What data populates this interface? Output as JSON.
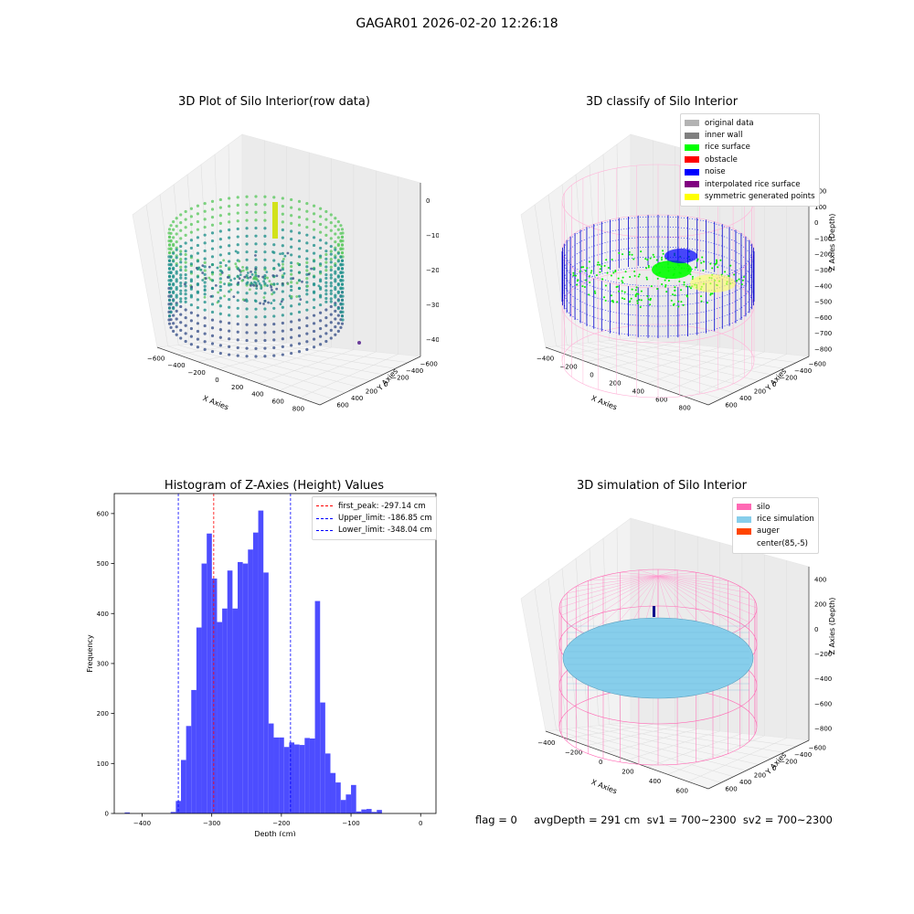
{
  "suptitle": "GAGAR01 2026-02-20 12:26:18",
  "panels": {
    "raw": {
      "title": "3D Plot of Silo Interior(row data)"
    },
    "classify": {
      "title": "3D classify of Silo Interior"
    },
    "hist": {
      "title": "Histogram of Z-Axies (Height) Values"
    },
    "sim": {
      "title": "3D simulation of Silo Interior"
    }
  },
  "legends": {
    "classify": [
      {
        "label": "original data",
        "color": "#b3b3b3"
      },
      {
        "label": "inner wall",
        "color": "#808080"
      },
      {
        "label": "rice surface",
        "color": "#00ff00"
      },
      {
        "label": "obstacle",
        "color": "#ff0000"
      },
      {
        "label": "noise",
        "color": "#0000ff"
      },
      {
        "label": "interpolated rice surface",
        "color": "#800080"
      },
      {
        "label": "symmetric generated points",
        "color": "#ffff00"
      }
    ],
    "hist": [
      {
        "label": "first_peak: -297.14 cm",
        "color": "#ff0000"
      },
      {
        "label": "Upper_limit: -186.85 cm",
        "color": "#0000ff"
      },
      {
        "label": "Lower_limit: -348.04 cm",
        "color": "#0000ff"
      }
    ],
    "sim": [
      {
        "label": "silo",
        "color": "#ff69b4"
      },
      {
        "label": "rice simulation",
        "color": "#87ceeb"
      },
      {
        "label": "auger",
        "color": "#ff4500"
      },
      {
        "label": "center(85,-5)",
        "color": "#ffffff"
      }
    ]
  },
  "axes3d": {
    "raw": {
      "xlabel": "X Axies",
      "ylabel": "Y Axies",
      "zlabel": "Z Axies (Depth)",
      "xticks": [
        "−600",
        "−400",
        "−200",
        "0",
        "200",
        "400",
        "600",
        "800"
      ],
      "yticks": [
        "−600",
        "−400",
        "−200",
        "0",
        "200",
        "400",
        "600"
      ],
      "zticks": [
        "0",
        "−100",
        "−200",
        "−300",
        "−400"
      ]
    },
    "classify": {
      "xlabel": "X Axies",
      "ylabel": "Y Axies",
      "zlabel": "Z Axies (Depth)",
      "xticks": [
        "−400",
        "−200",
        "0",
        "200",
        "400",
        "600",
        "800"
      ],
      "yticks": [
        "−600",
        "−400",
        "−200",
        "0",
        "200",
        "400",
        "600"
      ],
      "zticks": [
        "200",
        "100",
        "0",
        "−100",
        "−200",
        "−300",
        "−400",
        "−500",
        "−600",
        "−700",
        "−800"
      ]
    },
    "sim": {
      "xlabel": "X Axies",
      "ylabel": "Y Axies",
      "zlabel": "Z Axies (Depth)",
      "xticks": [
        "−400",
        "−200",
        "0",
        "200",
        "400",
        "600"
      ],
      "yticks": [
        "−600",
        "−400",
        "−200",
        "0",
        "200",
        "400",
        "600"
      ],
      "zticks": [
        "400",
        "200",
        "0",
        "−200",
        "−400",
        "−600",
        "−800"
      ]
    }
  },
  "chart_data": {
    "type": "bar",
    "title": "Histogram of Z-Axies (Height) Values",
    "xlabel": "Depth (cm)",
    "ylabel": "Frequency",
    "xlim": [
      -440,
      22
    ],
    "ylim": [
      0,
      640
    ],
    "xticks": [
      -400,
      -300,
      -200,
      -100,
      0
    ],
    "yticks": [
      0,
      100,
      200,
      300,
      400,
      500,
      600
    ],
    "bin_width": 7.4,
    "bins": [
      {
        "x0": -425.0,
        "count": 2
      },
      {
        "x0": -359.0,
        "count": 3
      },
      {
        "x0": -351.6,
        "count": 25
      },
      {
        "x0": -344.2,
        "count": 107
      },
      {
        "x0": -336.8,
        "count": 175
      },
      {
        "x0": -329.4,
        "count": 247
      },
      {
        "x0": -322.0,
        "count": 372
      },
      {
        "x0": -314.6,
        "count": 500
      },
      {
        "x0": -307.2,
        "count": 560
      },
      {
        "x0": -299.8,
        "count": 470
      },
      {
        "x0": -292.4,
        "count": 383
      },
      {
        "x0": -285.0,
        "count": 410
      },
      {
        "x0": -277.6,
        "count": 486
      },
      {
        "x0": -270.2,
        "count": 410
      },
      {
        "x0": -262.8,
        "count": 503
      },
      {
        "x0": -255.4,
        "count": 500
      },
      {
        "x0": -248.0,
        "count": 528
      },
      {
        "x0": -240.6,
        "count": 562
      },
      {
        "x0": -233.2,
        "count": 606
      },
      {
        "x0": -225.8,
        "count": 482
      },
      {
        "x0": -218.4,
        "count": 180
      },
      {
        "x0": -211.0,
        "count": 152
      },
      {
        "x0": -203.6,
        "count": 152
      },
      {
        "x0": -196.2,
        "count": 133
      },
      {
        "x0": -188.8,
        "count": 142
      },
      {
        "x0": -181.4,
        "count": 138
      },
      {
        "x0": -174.0,
        "count": 137
      },
      {
        "x0": -166.6,
        "count": 151
      },
      {
        "x0": -159.2,
        "count": 150
      },
      {
        "x0": -151.8,
        "count": 425
      },
      {
        "x0": -144.4,
        "count": 222
      },
      {
        "x0": -137.0,
        "count": 120
      },
      {
        "x0": -129.6,
        "count": 81
      },
      {
        "x0": -122.2,
        "count": 62
      },
      {
        "x0": -114.8,
        "count": 27
      },
      {
        "x0": -107.4,
        "count": 38
      },
      {
        "x0": -100.0,
        "count": 57
      },
      {
        "x0": -92.6,
        "count": 4
      },
      {
        "x0": -85.2,
        "count": 8
      },
      {
        "x0": -77.8,
        "count": 9
      },
      {
        "x0": -70.4,
        "count": 3
      },
      {
        "x0": -63.0,
        "count": 7
      }
    ],
    "vlines": [
      {
        "name": "first_peak: -297.14 cm",
        "x": -297.14,
        "color": "#ff0000"
      },
      {
        "name": "Upper_limit: -186.85 cm",
        "x": -186.85,
        "color": "#0000ff"
      },
      {
        "name": "Lower_limit: -348.04 cm",
        "x": -348.04,
        "color": "#0000ff"
      }
    ],
    "bar_color": "#4d4dff"
  },
  "footer": "flag = 0     avgDepth = 291 cm  sv1 = 700~2300  sv2 = 700~2300"
}
